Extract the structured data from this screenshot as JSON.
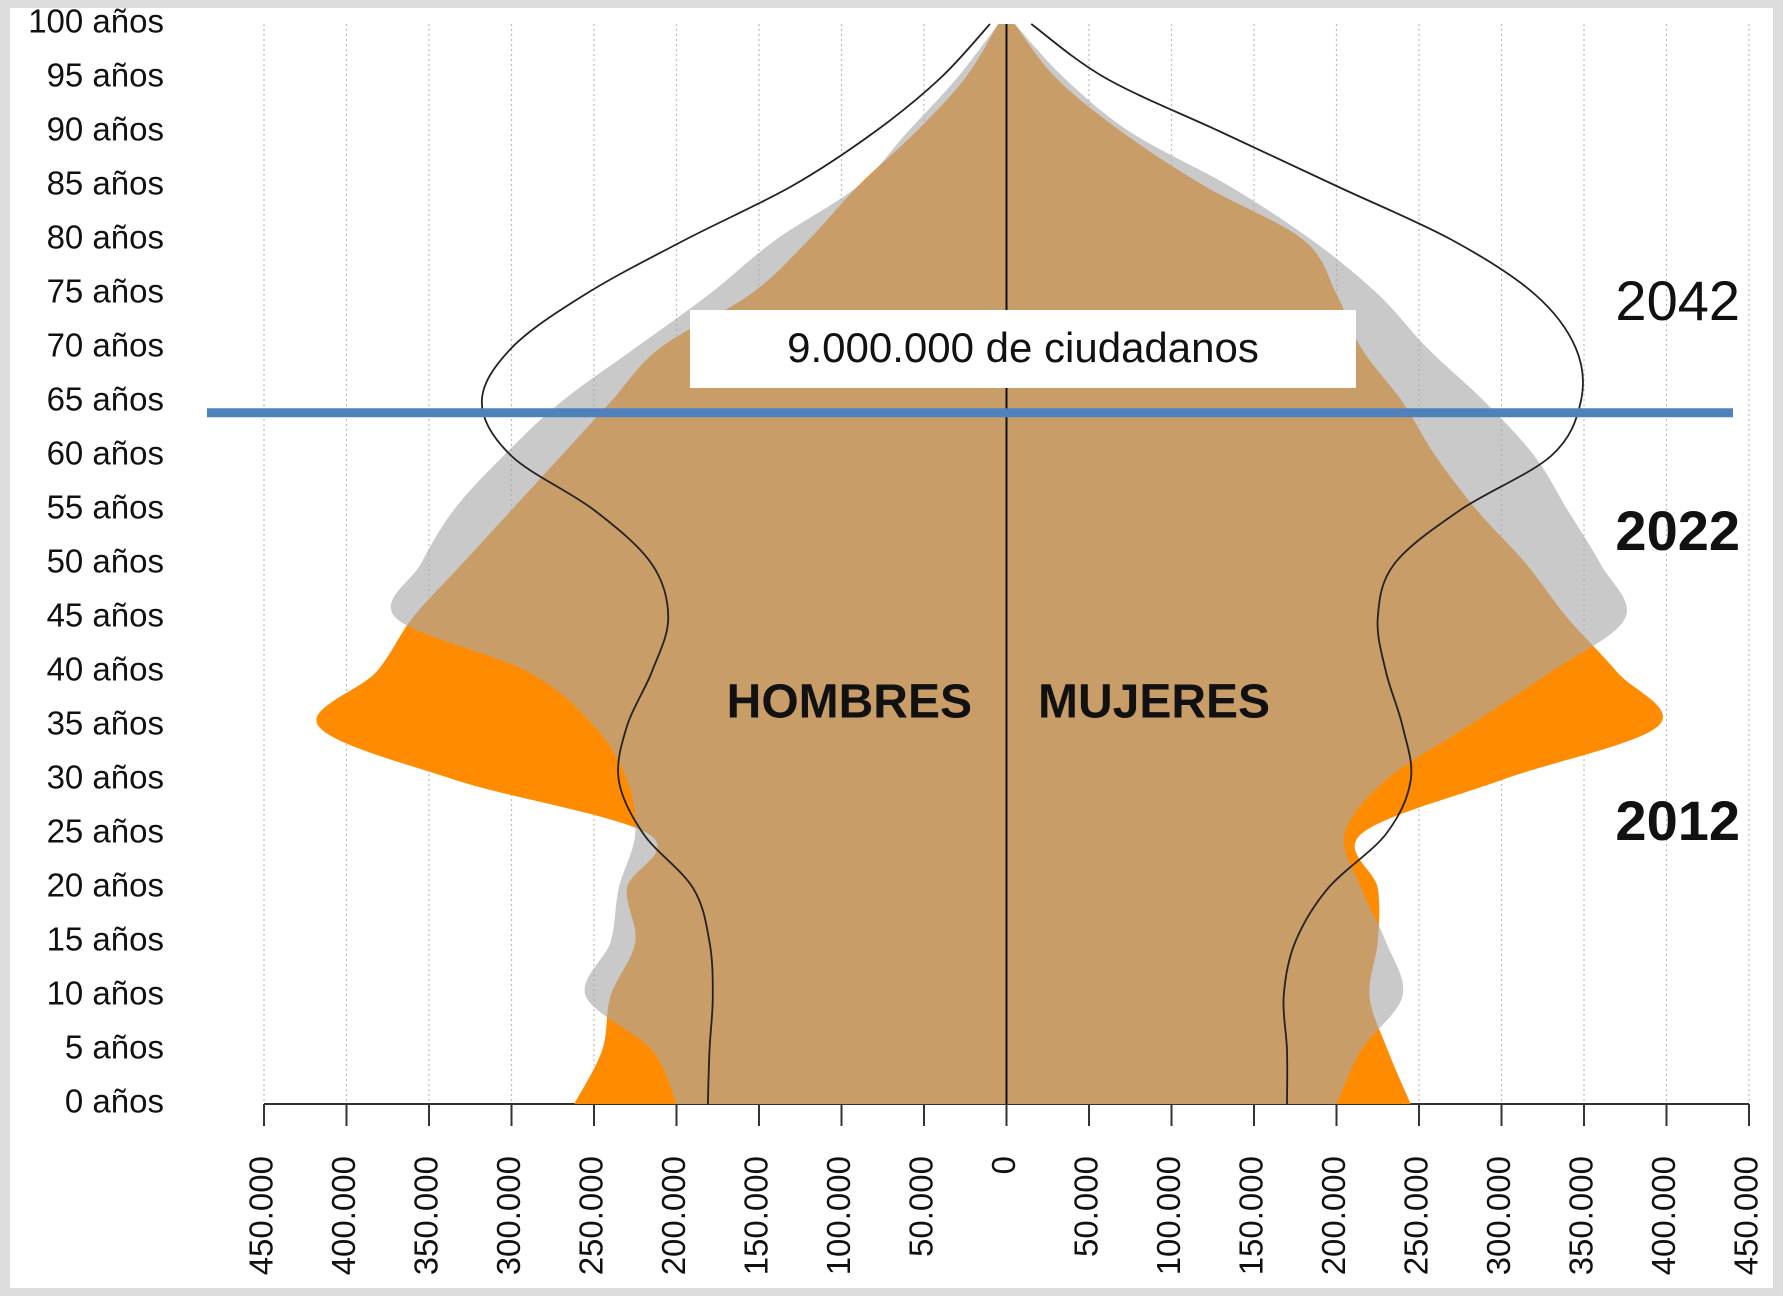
{
  "chart_data": {
    "type": "pyramid",
    "y": [
      0,
      5,
      10,
      15,
      20,
      25,
      30,
      35,
      40,
      45,
      50,
      55,
      60,
      65,
      70,
      75,
      80,
      85,
      90,
      95,
      100
    ],
    "series": [
      {
        "name": "2012",
        "color": "#ff8c00",
        "style": "area",
        "men": [
          262000,
          245000,
          240000,
          225000,
          230000,
          217000,
          334000,
          417000,
          382000,
          360000,
          330000,
          300000,
          270000,
          240000,
          210000,
          155000,
          120000,
          90000,
          55000,
          25000,
          5000
        ],
        "women": [
          245000,
          231000,
          220000,
          225000,
          225000,
          215000,
          300000,
          395000,
          370000,
          340000,
          315000,
          285000,
          260000,
          240000,
          215000,
          200000,
          180000,
          120000,
          70000,
          30000,
          5000
        ]
      },
      {
        "name": "2022",
        "color": "#a8a8a8",
        "style": "area",
        "men": [
          200000,
          215000,
          255000,
          240000,
          235000,
          225000,
          230000,
          250000,
          290000,
          370000,
          355000,
          335000,
          305000,
          270000,
          225000,
          180000,
          140000,
          90000,
          60000,
          30000,
          5000
        ],
        "women": [
          200000,
          215000,
          240000,
          230000,
          215000,
          205000,
          230000,
          280000,
          330000,
          375000,
          360000,
          340000,
          320000,
          290000,
          255000,
          225000,
          185000,
          135000,
          75000,
          35000,
          5000
        ]
      },
      {
        "name": "2042",
        "color": "#222222",
        "style": "line",
        "men": [
          181000,
          180000,
          178000,
          180000,
          190000,
          220000,
          235000,
          230000,
          215000,
          205000,
          215000,
          250000,
          300000,
          318000,
          300000,
          255000,
          195000,
          130000,
          80000,
          40000,
          10000
        ],
        "women": [
          170000,
          170000,
          168000,
          175000,
          195000,
          230000,
          245000,
          240000,
          230000,
          225000,
          235000,
          275000,
          330000,
          348000,
          345000,
          320000,
          270000,
          200000,
          130000,
          60000,
          15000
        ]
      }
    ],
    "xlim": [
      -450000,
      450000
    ],
    "xticks": [
      {
        "value": -450000,
        "label": "450.000"
      },
      {
        "value": -400000,
        "label": "400.000"
      },
      {
        "value": -350000,
        "label": "350.000"
      },
      {
        "value": -300000,
        "label": "300.000"
      },
      {
        "value": -250000,
        "label": "250.000"
      },
      {
        "value": -200000,
        "label": "200.000"
      },
      {
        "value": -150000,
        "label": "150.000"
      },
      {
        "value": -100000,
        "label": "100.000"
      },
      {
        "value": -50000,
        "label": "50.000"
      },
      0,
      {
        "value": 50000,
        "label": "50.000"
      },
      {
        "value": 100000,
        "label": "100.000"
      },
      {
        "value": 150000,
        "label": "150.000"
      },
      {
        "value": 200000,
        "label": "200.000"
      },
      {
        "value": 250000,
        "label": "250.000"
      },
      {
        "value": 300000,
        "label": "300.000"
      },
      {
        "value": 350000,
        "label": "350.000"
      },
      {
        "value": 400000,
        "label": "400.000"
      },
      {
        "value": 450000,
        "label": "450.000"
      }
    ],
    "ylim": [
      0,
      100
    ],
    "yticks": [
      {
        "value": 0,
        "label": "0 años"
      },
      {
        "value": 5,
        "label": "5 años"
      },
      {
        "value": 10,
        "label": "10 años"
      },
      {
        "value": 15,
        "label": "15 años"
      },
      {
        "value": 20,
        "label": "20 años"
      },
      {
        "value": 25,
        "label": "25 años"
      },
      {
        "value": 30,
        "label": "30 años"
      },
      {
        "value": 35,
        "label": "35 años"
      },
      {
        "value": 40,
        "label": "40 años"
      },
      {
        "value": 45,
        "label": "45 años"
      },
      {
        "value": 50,
        "label": "50 años"
      },
      {
        "value": 55,
        "label": "55 años"
      },
      {
        "value": 60,
        "label": "60 años"
      },
      {
        "value": 65,
        "label": "65 años"
      },
      {
        "value": 70,
        "label": "70 años"
      },
      {
        "value": 75,
        "label": "75 años"
      },
      {
        "value": 80,
        "label": "80 años"
      },
      {
        "value": 85,
        "label": "85 años"
      },
      {
        "value": 90,
        "label": "90 años"
      },
      {
        "value": 95,
        "label": "95 años"
      },
      {
        "value": 100,
        "label": "100 años"
      }
    ],
    "grid": true,
    "men_label": "HOMBRES",
    "women_label": "MUJERES",
    "reference_line": {
      "y": 64,
      "color": "#4f81bd"
    },
    "annotation": "9.000.000 de ciudadanos"
  }
}
